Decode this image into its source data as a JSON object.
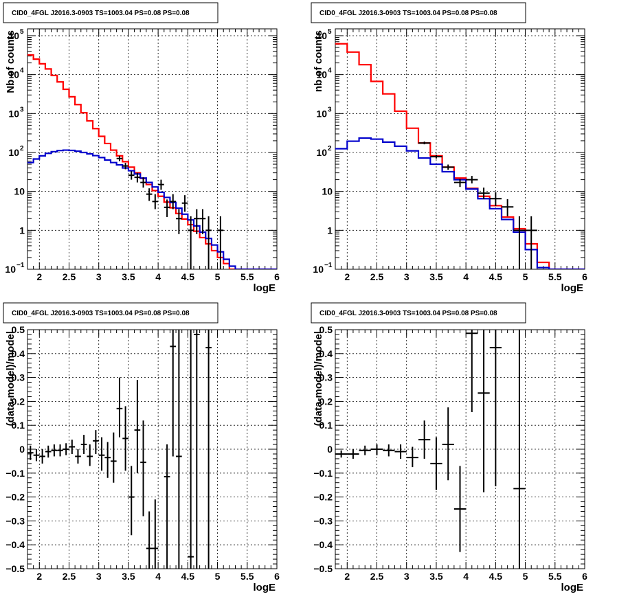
{
  "colors": {
    "model": "#ff0000",
    "background": "#0000cc",
    "data": "#000000",
    "grid": "#000000"
  },
  "chart_data": [
    {
      "type": "line",
      "title": "CID0_4FGL J2016.3-0903 TS=1003.04 PS=0.08 PS=0.08",
      "xlabel": "logE",
      "ylabel": "Nb of counts",
      "scale_y": "log",
      "xlim": [
        1.8,
        6.0
      ],
      "ylim": [
        0.1,
        150000
      ],
      "grid": true,
      "x_ticks": [
        2,
        2.5,
        3,
        3.5,
        4,
        4.5,
        5,
        5.5,
        6
      ],
      "x_tick_labels": [
        "2",
        "2.5",
        "3",
        "3.5",
        "4",
        "4.5",
        "5",
        "5.5",
        "6"
      ],
      "y_ticks": [
        0.1,
        1,
        10,
        100,
        1000,
        10000,
        100000
      ],
      "y_tick_labels": [
        {
          "base": "10",
          "exp": "−1"
        },
        {
          "base": "1",
          "exp": ""
        },
        {
          "base": "10",
          "exp": ""
        },
        {
          "base": "10",
          "exp": "2"
        },
        {
          "base": "10",
          "exp": "3"
        },
        {
          "base": "10",
          "exp": "4"
        },
        {
          "base": "10",
          "exp": "5"
        }
      ],
      "bin_edges": [
        1.8,
        1.9,
        2.0,
        2.1,
        2.2,
        2.3,
        2.4,
        2.5,
        2.6,
        2.7,
        2.8,
        2.9,
        3.0,
        3.1,
        3.2,
        3.3,
        3.4,
        3.5,
        3.6,
        3.7,
        3.8,
        3.9,
        4.0,
        4.1,
        4.2,
        4.3,
        4.4,
        4.5,
        4.6,
        4.7,
        4.8,
        4.9,
        5.0,
        5.1,
        5.2,
        5.3,
        5.4,
        5.5,
        5.6,
        5.7,
        5.8,
        5.9,
        6.0
      ],
      "series": [
        {
          "role": "model",
          "values": [
            32000,
            25000,
            19000,
            14000,
            9500,
            6500,
            4200,
            2700,
            1700,
            1050,
            650,
            410,
            260,
            170,
            115,
            82,
            58,
            42,
            30,
            21.5,
            15,
            10.5,
            7.5,
            5.3,
            3.8,
            2.7,
            1.95,
            1.4,
            0.95,
            0.65,
            0.45,
            0.3,
            0.2,
            0.14,
            0.1,
            0.1,
            0.1,
            0.1,
            0.1,
            0.1,
            0.1,
            0.1
          ]
        },
        {
          "role": "background",
          "values": [
            55,
            68,
            82,
            95,
            105,
            112,
            115,
            113,
            108,
            100,
            92,
            83,
            74,
            64,
            55,
            48,
            40,
            34,
            28,
            22,
            17,
            13,
            9.5,
            7,
            5.2,
            3.7,
            2.6,
            1.85,
            1.3,
            0.9,
            0.62,
            0.42,
            0.28,
            0.18,
            0.12,
            0.1,
            0.1,
            0.1,
            0.1,
            0.1,
            0.1,
            0.1
          ]
        },
        {
          "role": "data",
          "points": [
            {
              "x": 3.35,
              "y": 70,
              "ylo": 60,
              "yhi": 82
            },
            {
              "x": 3.45,
              "y": 45,
              "ylo": 37,
              "yhi": 54
            },
            {
              "x": 3.55,
              "y": 26,
              "ylo": 20,
              "yhi": 33
            },
            {
              "x": 3.65,
              "y": 23,
              "ylo": 17,
              "yhi": 30
            },
            {
              "x": 3.75,
              "y": 17,
              "ylo": 12.5,
              "yhi": 23
            },
            {
              "x": 3.85,
              "y": 8.5,
              "ylo": 5.7,
              "yhi": 12
            },
            {
              "x": 3.95,
              "y": 5.5,
              "ylo": 3.5,
              "yhi": 8.5
            },
            {
              "x": 4.05,
              "y": 15,
              "ylo": 11,
              "yhi": 20
            },
            {
              "x": 4.15,
              "y": 3.9,
              "ylo": 2.2,
              "yhi": 6.2
            },
            {
              "x": 4.25,
              "y": 5.5,
              "ylo": 3.5,
              "yhi": 8.5
            },
            {
              "x": 4.35,
              "y": 2,
              "ylo": 0.8,
              "yhi": 3.5
            },
            {
              "x": 4.45,
              "y": 5,
              "ylo": 3,
              "yhi": 8
            },
            {
              "x": 4.55,
              "y": 1,
              "ylo": 0.1,
              "yhi": 2.3
            },
            {
              "x": 4.65,
              "y": 2,
              "ylo": 0.8,
              "yhi": 3.5
            },
            {
              "x": 4.75,
              "y": 2,
              "ylo": 0.8,
              "yhi": 3.5
            },
            {
              "x": 4.85,
              "y": 1,
              "ylo": 0.1,
              "yhi": 2.3
            },
            {
              "x": 5.05,
              "y": 1,
              "ylo": 0.1,
              "yhi": 2.3
            }
          ]
        }
      ]
    },
    {
      "type": "line",
      "title": "CID0_4FGL J2016.3-0903 TS=1003.04 PS=0.08 PS=0.08",
      "xlabel": "logE",
      "ylabel": "nb of counts",
      "scale_y": "log",
      "xlim": [
        1.8,
        6.0
      ],
      "ylim": [
        0.1,
        150000
      ],
      "grid": true,
      "x_ticks": [
        2,
        2.5,
        3,
        3.5,
        4,
        4.5,
        5,
        5.5,
        6
      ],
      "x_tick_labels": [
        "2",
        "2.5",
        "3",
        "3.5",
        "4",
        "4.5",
        "5",
        "5.5",
        "6"
      ],
      "y_ticks": [
        0.1,
        1,
        10,
        100,
        1000,
        10000,
        100000
      ],
      "y_tick_labels": [
        {
          "base": "10",
          "exp": "−1"
        },
        {
          "base": "1",
          "exp": ""
        },
        {
          "base": "10",
          "exp": ""
        },
        {
          "base": "10",
          "exp": "2"
        },
        {
          "base": "10",
          "exp": "3"
        },
        {
          "base": "10",
          "exp": "4"
        },
        {
          "base": "10",
          "exp": "5"
        }
      ],
      "bin_edges": [
        1.8,
        2.0,
        2.2,
        2.4,
        2.6,
        2.8,
        3.0,
        3.2,
        3.4,
        3.6,
        3.8,
        4.0,
        4.2,
        4.4,
        4.6,
        4.8,
        5.0,
        5.2,
        5.4,
        5.6,
        5.8,
        6.0
      ],
      "series": [
        {
          "role": "model",
          "values": [
            62000,
            38000,
            18000,
            6700,
            3200,
            1150,
            420,
            175,
            82,
            42,
            22,
            12,
            7.5,
            4.3,
            2.2,
            1.1,
            0.45,
            0.15,
            0.1,
            0.1,
            0.1
          ]
        },
        {
          "role": "background",
          "values": [
            125,
            195,
            235,
            220,
            185,
            145,
            110,
            72,
            50,
            32,
            20,
            11.5,
            6.5,
            3.6,
            1.9,
            0.9,
            0.32,
            0.11,
            0.1,
            0.1,
            0.1
          ]
        },
        {
          "role": "data",
          "points": [
            {
              "x": 3.3,
              "y": 175,
              "ylo": 162,
              "yhi": 190
            },
            {
              "x": 3.5,
              "y": 78,
              "ylo": 70,
              "yhi": 87
            },
            {
              "x": 3.7,
              "y": 42,
              "ylo": 36,
              "yhi": 49
            },
            {
              "x": 3.9,
              "y": 17,
              "ylo": 13,
              "yhi": 21
            },
            {
              "x": 4.1,
              "y": 20,
              "ylo": 16,
              "yhi": 25
            },
            {
              "x": 4.3,
              "y": 9,
              "ylo": 6.3,
              "yhi": 12.5
            },
            {
              "x": 4.5,
              "y": 6.5,
              "ylo": 4.2,
              "yhi": 9.5
            },
            {
              "x": 4.7,
              "y": 4,
              "ylo": 2.3,
              "yhi": 6.3
            },
            {
              "x": 4.9,
              "y": 1,
              "ylo": 0.1,
              "yhi": 2.3
            },
            {
              "x": 5.1,
              "y": 1,
              "ylo": 0.1,
              "yhi": 2.3
            }
          ]
        }
      ]
    },
    {
      "type": "scatter",
      "title": "CID0_4FGL J2016.3-0903 TS=1003.04 PS=0.08 PS=0.08",
      "xlabel": "logE",
      "ylabel": "(data-model)/model",
      "scale_y": "linear",
      "xlim": [
        1.8,
        6.0
      ],
      "ylim": [
        -0.5,
        0.5
      ],
      "grid": true,
      "x_ticks": [
        2,
        2.5,
        3,
        3.5,
        4,
        4.5,
        5,
        5.5,
        6
      ],
      "x_tick_labels": [
        "2",
        "2.5",
        "3",
        "3.5",
        "4",
        "4.5",
        "5",
        "5.5",
        "6"
      ],
      "y_ticks": [
        -0.5,
        -0.4,
        -0.3,
        -0.2,
        -0.1,
        0,
        0.1,
        0.2,
        0.3,
        0.4,
        0.5
      ],
      "y_tick_labels": [
        "−0.5",
        "−0.4",
        "−0.3",
        "−0.2",
        "−0.1",
        "0",
        "0.1",
        "0.2",
        "0.3",
        "0.4",
        "0.5"
      ],
      "xerr": 0.05,
      "points": [
        {
          "x": 1.85,
          "y": -0.015,
          "ylo": -0.045,
          "yhi": 0.015
        },
        {
          "x": 1.95,
          "y": -0.025,
          "ylo": -0.05,
          "yhi": 0.0
        },
        {
          "x": 2.05,
          "y": -0.03,
          "ylo": -0.06,
          "yhi": 0.0
        },
        {
          "x": 2.15,
          "y": -0.01,
          "ylo": -0.035,
          "yhi": 0.015
        },
        {
          "x": 2.25,
          "y": -0.005,
          "ylo": -0.03,
          "yhi": 0.02
        },
        {
          "x": 2.35,
          "y": -0.005,
          "ylo": -0.03,
          "yhi": 0.02
        },
        {
          "x": 2.45,
          "y": 0.0,
          "ylo": -0.025,
          "yhi": 0.025
        },
        {
          "x": 2.55,
          "y": 0.01,
          "ylo": -0.02,
          "yhi": 0.04
        },
        {
          "x": 2.65,
          "y": -0.03,
          "ylo": -0.06,
          "yhi": 0.0
        },
        {
          "x": 2.75,
          "y": 0.02,
          "ylo": -0.02,
          "yhi": 0.06
        },
        {
          "x": 2.85,
          "y": -0.03,
          "ylo": -0.07,
          "yhi": 0.02
        },
        {
          "x": 2.95,
          "y": 0.035,
          "ylo": -0.02,
          "yhi": 0.08
        },
        {
          "x": 3.05,
          "y": -0.025,
          "ylo": -0.09,
          "yhi": 0.05
        },
        {
          "x": 3.15,
          "y": -0.035,
          "ylo": -0.12,
          "yhi": 0.03
        },
        {
          "x": 3.25,
          "y": -0.05,
          "ylo": -0.14,
          "yhi": 0.07
        },
        {
          "x": 3.35,
          "y": 0.17,
          "ylo": 0.05,
          "yhi": 0.3
        },
        {
          "x": 3.45,
          "y": 0.045,
          "ylo": -0.09,
          "yhi": 0.18
        },
        {
          "x": 3.55,
          "y": -0.2,
          "ylo": -0.36,
          "yhi": -0.07
        },
        {
          "x": 3.65,
          "y": 0.08,
          "ylo": -0.1,
          "yhi": 0.29
        },
        {
          "x": 3.75,
          "y": -0.055,
          "ylo": -0.28,
          "yhi": 0.12
        },
        {
          "x": 3.85,
          "y": -0.415,
          "ylo": -0.5,
          "yhi": -0.26
        },
        {
          "x": 3.95,
          "y": -0.415,
          "ylo": -0.5,
          "yhi": -0.21
        },
        {
          "x": 4.15,
          "y": -0.115,
          "ylo": -0.5,
          "yhi": 0.02
        },
        {
          "x": 4.25,
          "y": 0.43,
          "ylo": -0.03,
          "yhi": 0.5
        },
        {
          "x": 4.35,
          "y": -0.03,
          "ylo": -0.5,
          "yhi": 0.5
        },
        {
          "x": 4.55,
          "y": -0.45,
          "ylo": -0.5,
          "yhi": 0.5
        },
        {
          "x": 4.65,
          "y": 0.48,
          "ylo": -0.5,
          "yhi": 0.5
        },
        {
          "x": 4.85,
          "y": 0.425,
          "ylo": -0.5,
          "yhi": 0.5
        }
      ]
    },
    {
      "type": "scatter",
      "title": "CID0_4FGL J2016.3-0903 TS=1003.04 PS=0.08 PS=0.08",
      "xlabel": "logE",
      "ylabel": "(data-model)/model",
      "scale_y": "linear",
      "xlim": [
        1.8,
        6.0
      ],
      "ylim": [
        -0.5,
        0.5
      ],
      "grid": true,
      "x_ticks": [
        2,
        2.5,
        3,
        3.5,
        4,
        4.5,
        5,
        5.5,
        6
      ],
      "x_tick_labels": [
        "2",
        "2.5",
        "3",
        "3.5",
        "4",
        "4.5",
        "5",
        "5.5",
        "6"
      ],
      "y_ticks": [
        -0.5,
        -0.4,
        -0.3,
        -0.2,
        -0.1,
        0,
        0.1,
        0.2,
        0.3,
        0.4,
        0.5
      ],
      "y_tick_labels": [
        "−0.5",
        "−0.4",
        "−0.3",
        "−0.2",
        "−0.1",
        "0",
        "0.1",
        "0.2",
        "0.3",
        "0.4",
        "0.5"
      ],
      "xerr": 0.1,
      "points": [
        {
          "x": 1.9,
          "y": -0.02,
          "ylo": -0.035,
          "yhi": -0.005
        },
        {
          "x": 2.1,
          "y": -0.02,
          "ylo": -0.04,
          "yhi": 0.0
        },
        {
          "x": 2.3,
          "y": -0.005,
          "ylo": -0.025,
          "yhi": 0.015
        },
        {
          "x": 2.5,
          "y": 0.0,
          "ylo": -0.025,
          "yhi": 0.02
        },
        {
          "x": 2.7,
          "y": -0.005,
          "ylo": -0.03,
          "yhi": 0.02
        },
        {
          "x": 2.9,
          "y": -0.01,
          "ylo": -0.04,
          "yhi": 0.02
        },
        {
          "x": 3.1,
          "y": -0.035,
          "ylo": -0.075,
          "yhi": 0.01
        },
        {
          "x": 3.3,
          "y": 0.04,
          "ylo": -0.04,
          "yhi": 0.12
        },
        {
          "x": 3.5,
          "y": -0.06,
          "ylo": -0.17,
          "yhi": 0.05
        },
        {
          "x": 3.7,
          "y": 0.02,
          "ylo": -0.13,
          "yhi": 0.175
        },
        {
          "x": 3.9,
          "y": -0.25,
          "ylo": -0.43,
          "yhi": -0.07
        },
        {
          "x": 4.1,
          "y": 0.485,
          "ylo": 0.155,
          "yhi": 0.5
        },
        {
          "x": 4.3,
          "y": 0.235,
          "ylo": -0.18,
          "yhi": 0.5
        },
        {
          "x": 4.5,
          "y": 0.425,
          "ylo": -0.155,
          "yhi": 0.5
        },
        {
          "x": 4.9,
          "y": -0.165,
          "ylo": -0.5,
          "yhi": 0.5
        }
      ]
    }
  ]
}
